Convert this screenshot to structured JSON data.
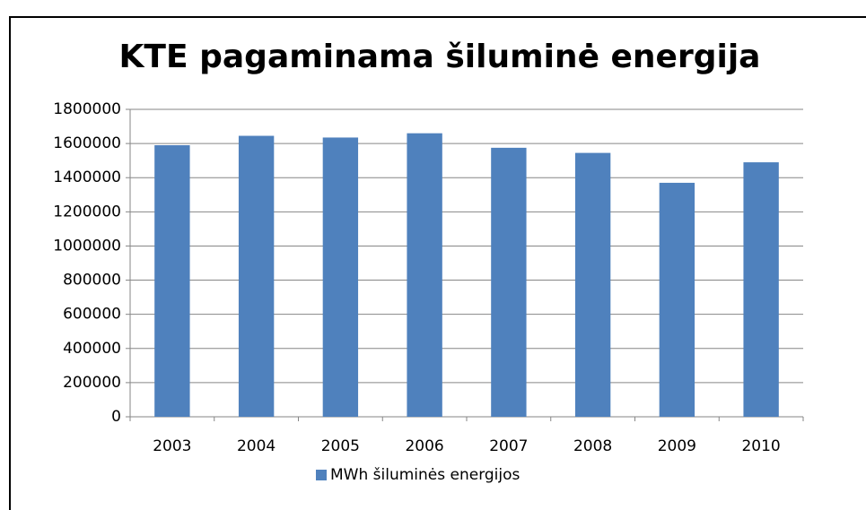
{
  "chart_data": {
    "type": "bar",
    "title": "KTE pagaminama šiluminė energija",
    "categories": [
      "2003",
      "2004",
      "2005",
      "2006",
      "2007",
      "2008",
      "2009",
      "2010"
    ],
    "series": [
      {
        "name": "MWh šiluminės energijos",
        "color": "#4f81bd",
        "values": [
          1590000,
          1645000,
          1635000,
          1660000,
          1575000,
          1545000,
          1370000,
          1490000
        ]
      }
    ],
    "ylim": [
      0,
      1800000
    ],
    "yticks": [
      0,
      200000,
      400000,
      600000,
      800000,
      1000000,
      1200000,
      1400000,
      1600000,
      1800000
    ],
    "grid": true,
    "legend": "bottom"
  }
}
